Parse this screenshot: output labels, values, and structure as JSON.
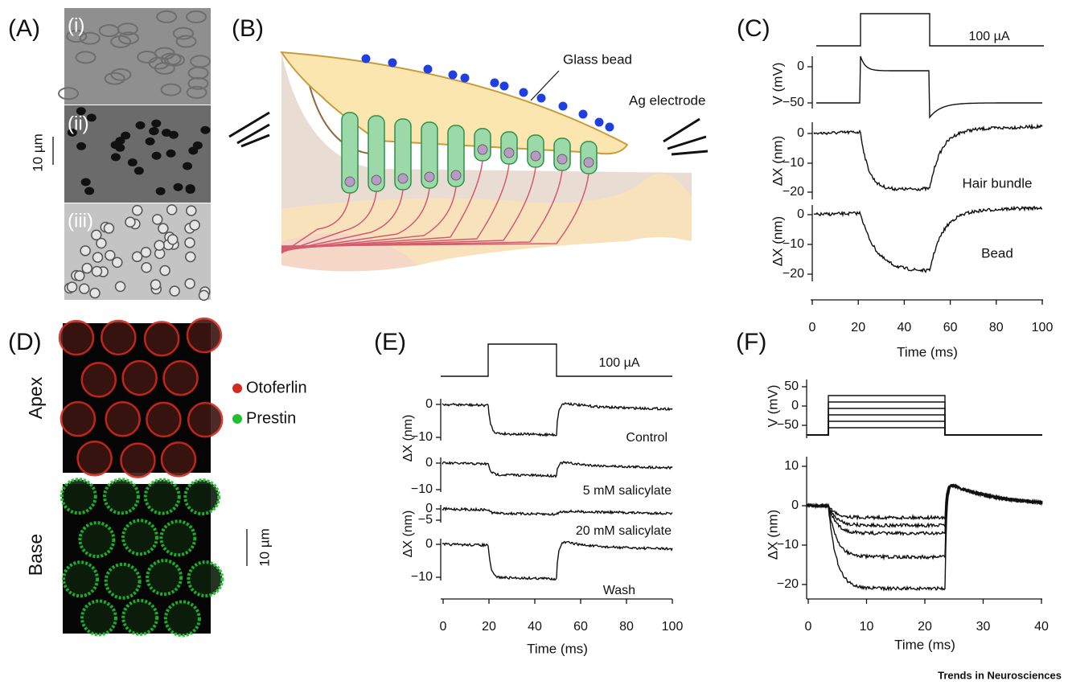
{
  "panels": {
    "A": {
      "label": "(A)",
      "sublabels": [
        "(i)",
        "(ii)",
        "(iii)"
      ],
      "scale": "10 µm"
    },
    "B": {
      "label": "(B)",
      "annotations": [
        "Glass bead",
        "Ag electrode"
      ]
    },
    "C": {
      "label": "(C)",
      "stimulus": "100 µA",
      "rows": [
        {
          "ylabel": "V (mV)",
          "yticks": [
            "0",
            "−50"
          ]
        },
        {
          "ylabel": "ΔX (nm)",
          "yticks": [
            "0",
            "−10",
            "−20"
          ],
          "trace_label": "Hair bundle"
        },
        {
          "ylabel": "ΔX (nm)",
          "yticks": [
            "0",
            "−10",
            "−20"
          ],
          "trace_label": "Bead"
        }
      ],
      "xticks": [
        "0",
        "20",
        "40",
        "60",
        "80",
        "100"
      ],
      "xlabel": "Time (ms)"
    },
    "D": {
      "label": "(D)",
      "rows": [
        "Apex",
        "Base"
      ],
      "legend": [
        "Otoferlin",
        "Prestin"
      ],
      "scale": "10 µm"
    },
    "E": {
      "label": "(E)",
      "stimulus": "100 µA",
      "rows": [
        {
          "yticks": [
            "0",
            "−10"
          ],
          "trace_label": "Control"
        },
        {
          "yticks": [
            "0",
            "−10"
          ],
          "trace_label": "5 mM salicylate"
        },
        {
          "yticks": [
            "0",
            "−5"
          ],
          "trace_label": "20 mM salicylate"
        },
        {
          "yticks": [
            "0",
            "−10"
          ],
          "trace_label": "Wash"
        }
      ],
      "ylabels": [
        "ΔX (nm)",
        "ΔX (nm)"
      ],
      "xticks": [
        "0",
        "20",
        "40",
        "60",
        "80",
        "100"
      ],
      "xlabel": "Time (ms)"
    },
    "F": {
      "label": "(F)",
      "top": {
        "ylabel": "V (mV)",
        "yticks": [
          "50",
          "0",
          "−50"
        ]
      },
      "bottom": {
        "ylabel": "ΔX (nm)",
        "yticks": [
          "10",
          "0",
          "−10",
          "−20"
        ]
      },
      "xticks": [
        "0",
        "10",
        "20",
        "30",
        "40"
      ],
      "xlabel": "Time (ms)"
    }
  },
  "footer": "Trends in Neurosciences"
}
